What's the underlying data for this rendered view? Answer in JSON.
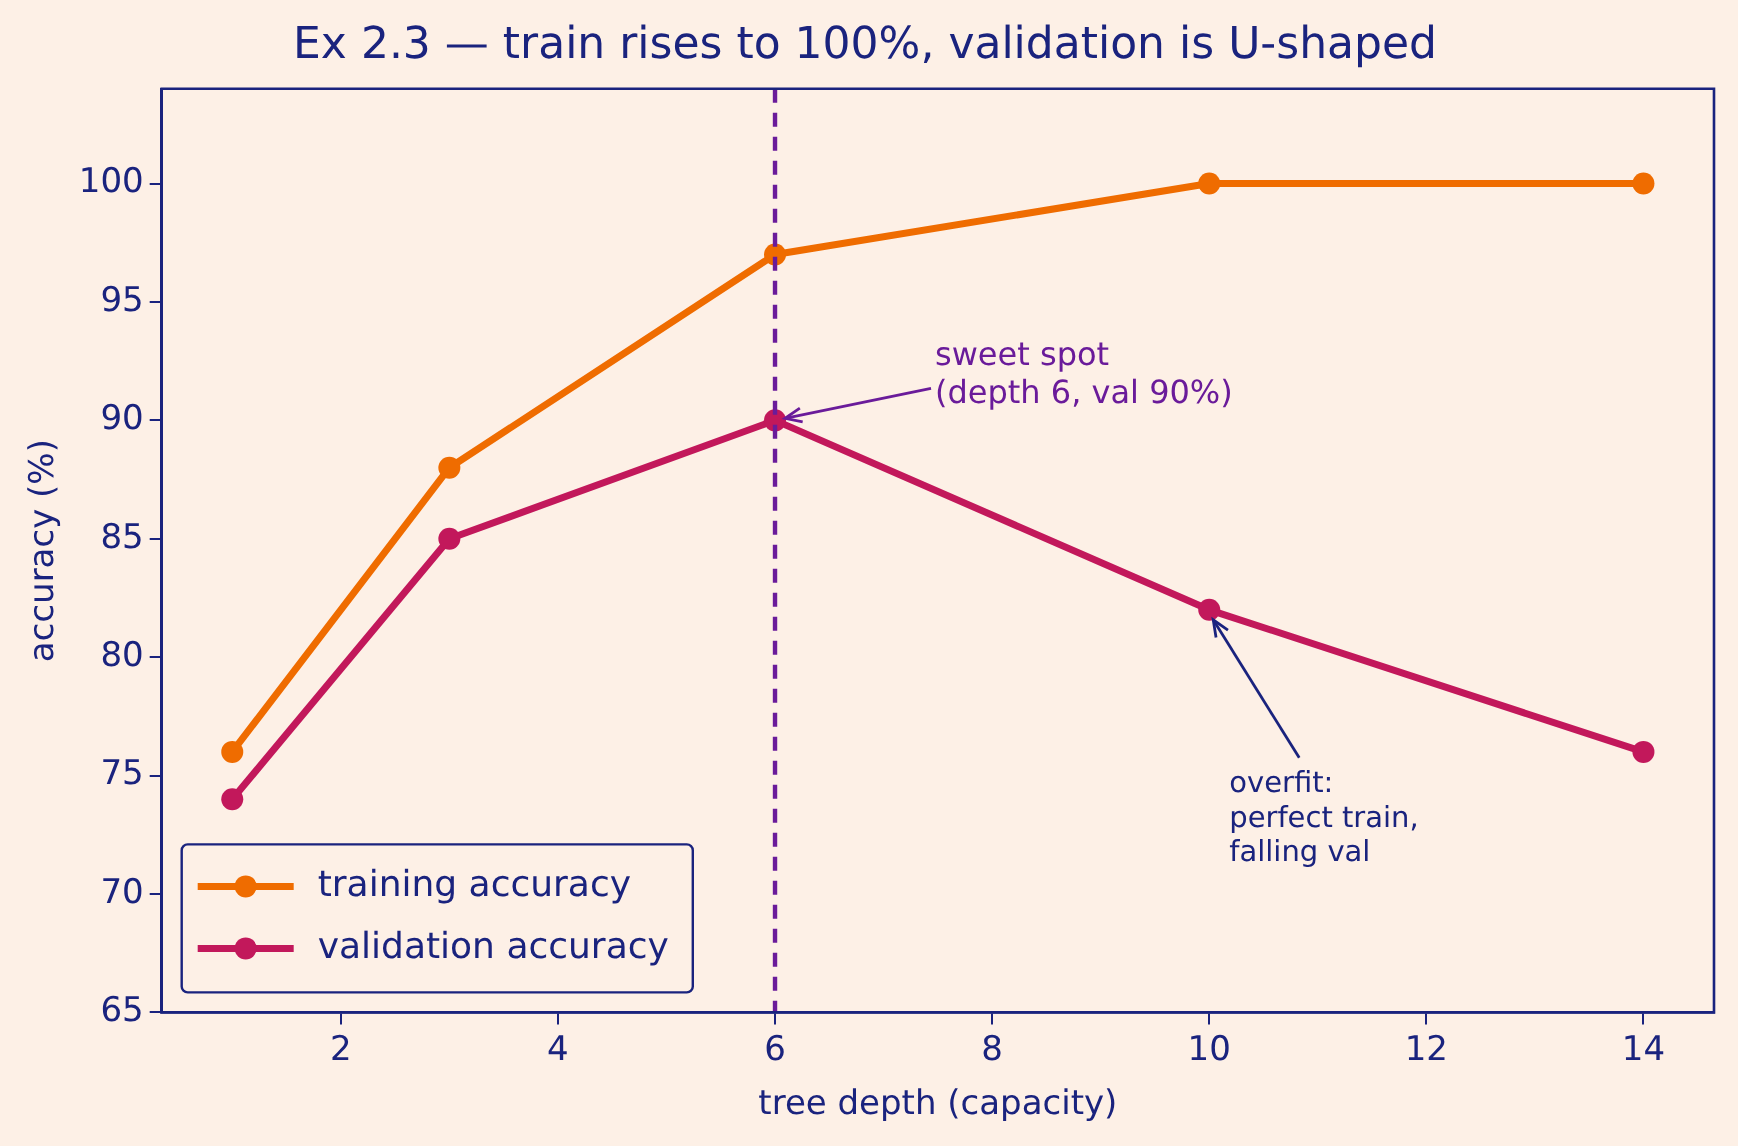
{
  "chart_data": {
    "type": "line",
    "title": "Ex 2.3 — train rises to 100%, validation is U-shaped",
    "xlabel": "tree depth (capacity)",
    "ylabel": "accuracy (%)",
    "x": [
      1,
      3,
      6,
      10,
      14
    ],
    "series": [
      {
        "name": "training accuracy",
        "color": "#ef6c00",
        "values": [
          76,
          88,
          97,
          100,
          100
        ]
      },
      {
        "name": "validation accuracy",
        "color": "#c2185b",
        "values": [
          74,
          85,
          90,
          82,
          76
        ]
      }
    ],
    "xlim": [
      0.35,
      14.65
    ],
    "xticks": [
      2,
      4,
      6,
      8,
      10,
      12,
      14
    ],
    "ylim": [
      65,
      104
    ],
    "yticks": [
      65,
      70,
      75,
      80,
      85,
      90,
      95,
      100
    ],
    "ref_lines": [
      {
        "axis": "x",
        "value": 6,
        "label": null,
        "color": "#6a1b9a",
        "line_style": "dashed"
      }
    ],
    "annotations": [
      {
        "text": "sweet spot\n(depth 6, val 90%)",
        "x": 6,
        "y": 90
      },
      {
        "text": "overfit:\nperfect train,\nfalling val",
        "x": 10,
        "y": 82
      }
    ],
    "legend": "bottom left",
    "grid": false,
    "marker": "circle",
    "line_style": "solid"
  }
}
